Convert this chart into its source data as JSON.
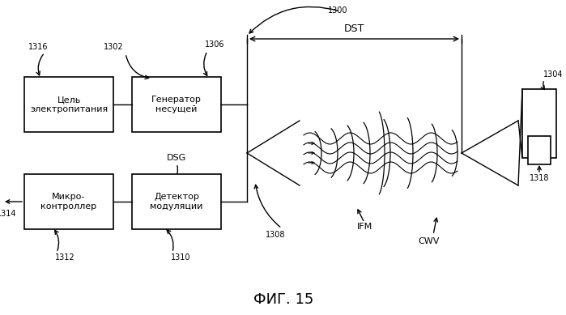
{
  "bg_color": "#ffffff",
  "line_color": "#000000",
  "fig_title": "ФИГ. 15",
  "box1_text": "Цель\nэлектропитания",
  "box2_text": "Генератор\nнесущей",
  "box3_text": "Микро-\nконтроллер",
  "box4_text": "Детектор\nмодуляции",
  "label_1300": "1300",
  "label_1302": "1302",
  "label_1304": "1304",
  "label_1306": "1306",
  "label_1308": "1308",
  "label_1310": "1310",
  "label_1312": "1312",
  "label_1314": "1314",
  "label_1316": "1316",
  "label_1318": "1318",
  "label_DST": "DST",
  "label_IFM": "IFM",
  "label_CWV": "CWV",
  "label_DSG": "DSG"
}
